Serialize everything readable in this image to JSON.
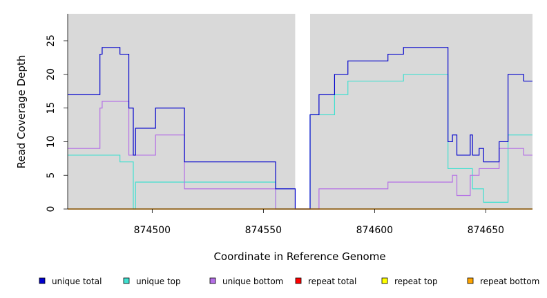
{
  "chart_data": {
    "type": "line",
    "title": "",
    "xlabel": "Coordinate in Reference Genome",
    "ylabel": "Read Coverage Depth",
    "xlim": [
      874462,
      874671
    ],
    "ylim": [
      0,
      29
    ],
    "x_ticks": [
      874500,
      874550,
      874600,
      874650
    ],
    "x_tick_labels": [
      "874500",
      "874550",
      "874600",
      "874650"
    ],
    "y_ticks": [
      0,
      5,
      10,
      15,
      20,
      25
    ],
    "y_tick_labels": [
      "0",
      "5",
      "10",
      "15",
      "20",
      "25"
    ],
    "background": "#d9d9d9",
    "grid": false,
    "gap_region": [
      874564.3,
      874571.0
    ],
    "legend_position": "bottom",
    "series": [
      {
        "name": "unique total",
        "color": "#0000cd",
        "steps": [
          [
            874462,
            17
          ],
          [
            874476.5,
            23
          ],
          [
            874477.5,
            24
          ],
          [
            874485.5,
            23
          ],
          [
            874489.5,
            15
          ],
          [
            874491.5,
            8
          ],
          [
            874492.5,
            12
          ],
          [
            874501.5,
            15
          ],
          [
            874514.5,
            7
          ],
          [
            874555.5,
            3
          ],
          [
            874564.3,
            0
          ],
          [
            874571.0,
            14
          ],
          [
            874575.0,
            17
          ],
          [
            874582.0,
            20
          ],
          [
            874588.0,
            22
          ],
          [
            874606.0,
            23
          ],
          [
            874613.0,
            24
          ],
          [
            874633.0,
            10
          ],
          [
            874635.0,
            11
          ],
          [
            874637.0,
            8
          ],
          [
            874643.0,
            11
          ],
          [
            874644.0,
            8
          ],
          [
            874647.0,
            9
          ],
          [
            874649.0,
            7
          ],
          [
            874656.0,
            10
          ],
          [
            874660.0,
            20
          ],
          [
            874667.0,
            19
          ],
          [
            874671.0,
            19
          ]
        ]
      },
      {
        "name": "unique top",
        "color": "#40e0d0",
        "steps": [
          [
            874462,
            8
          ],
          [
            874485.5,
            7
          ],
          [
            874491.5,
            0
          ],
          [
            874492.5,
            4
          ],
          [
            874555.5,
            0
          ],
          [
            874571.0,
            14
          ],
          [
            874582.0,
            17
          ],
          [
            874588.0,
            19
          ],
          [
            874613.0,
            20
          ],
          [
            874633.0,
            6
          ],
          [
            874644.0,
            3
          ],
          [
            874649.0,
            1
          ],
          [
            874660.0,
            11
          ],
          [
            874671.0,
            11
          ]
        ]
      },
      {
        "name": "unique bottom",
        "color": "#b46ee6",
        "steps": [
          [
            874462,
            9
          ],
          [
            874476.5,
            15
          ],
          [
            874477.5,
            16
          ],
          [
            874489.5,
            8
          ],
          [
            874501.5,
            11
          ],
          [
            874514.5,
            3
          ],
          [
            874555.5,
            0
          ],
          [
            874575.0,
            3
          ],
          [
            874606.0,
            4
          ],
          [
            874635.0,
            5
          ],
          [
            874637.0,
            2
          ],
          [
            874643.0,
            5
          ],
          [
            874647.0,
            6
          ],
          [
            874656.0,
            9
          ],
          [
            874667.0,
            8
          ],
          [
            874671.0,
            8
          ]
        ]
      },
      {
        "name": "repeat total",
        "color": "#ff0000",
        "steps": [
          [
            874462,
            0
          ],
          [
            874671,
            0
          ]
        ]
      },
      {
        "name": "repeat top",
        "color": "#ffff00",
        "steps": [
          [
            874462,
            0
          ],
          [
            874671,
            0
          ]
        ]
      },
      {
        "name": "repeat bottom",
        "color": "#ffa500",
        "steps": [
          [
            874462,
            0
          ],
          [
            874671,
            0
          ]
        ]
      }
    ]
  }
}
